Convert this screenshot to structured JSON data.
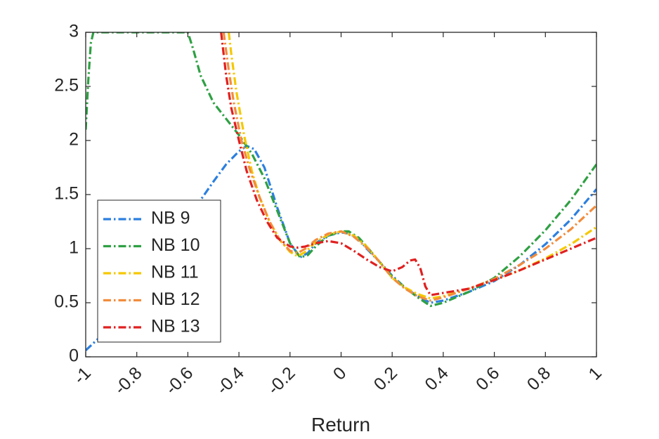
{
  "chart_data": {
    "type": "line",
    "title": "",
    "xlabel": "Return",
    "ylabel": "",
    "xlim": [
      -1,
      1
    ],
    "ylim": [
      0,
      3
    ],
    "xticks": [
      -1,
      -0.8,
      -0.6,
      -0.4,
      -0.2,
      0,
      0.2,
      0.4,
      0.6,
      0.8,
      1
    ],
    "xtick_labels": [
      "-1",
      "-0.8",
      "-0.6",
      "-0.4",
      "-0.2",
      "0",
      "0.2",
      "0.4",
      "0.6",
      "0.8",
      "1"
    ],
    "yticks": [
      0,
      0.5,
      1,
      1.5,
      2,
      2.5,
      3
    ],
    "ytick_labels": [
      "0",
      "0.5",
      "1",
      "1.5",
      "2",
      "2.5",
      "3"
    ],
    "grid": false,
    "legend_position": "bottom-left",
    "line_style": "dash-dot",
    "series": [
      {
        "name": "NB 9",
        "color": "#2c7fdf",
        "x": [
          -1.0,
          -0.9,
          -0.8,
          -0.7,
          -0.6,
          -0.5,
          -0.45,
          -0.4,
          -0.37,
          -0.34,
          -0.3,
          -0.25,
          -0.2,
          -0.16,
          -0.13,
          -0.1,
          -0.05,
          0.0,
          0.03,
          0.07,
          0.1,
          0.15,
          0.2,
          0.25,
          0.3,
          0.35,
          0.4,
          0.5,
          0.6,
          0.7,
          0.8,
          0.9,
          1.0
        ],
        "values": [
          0.06,
          0.28,
          0.58,
          0.92,
          1.28,
          1.62,
          1.78,
          1.9,
          1.95,
          1.92,
          1.75,
          1.38,
          1.05,
          0.92,
          0.96,
          1.05,
          1.12,
          1.15,
          1.14,
          1.09,
          1.0,
          0.88,
          0.75,
          0.64,
          0.56,
          0.5,
          0.52,
          0.6,
          0.7,
          0.85,
          1.04,
          1.27,
          1.55
        ]
      },
      {
        "name": "NB 10",
        "color": "#2fa043",
        "x": [
          -1.0,
          -0.99,
          -0.98,
          -0.97,
          -0.6,
          -0.58,
          -0.55,
          -0.5,
          -0.45,
          -0.4,
          -0.35,
          -0.3,
          -0.25,
          -0.2,
          -0.16,
          -0.13,
          -0.1,
          -0.05,
          0.0,
          0.03,
          0.07,
          0.1,
          0.15,
          0.2,
          0.25,
          0.3,
          0.35,
          0.4,
          0.5,
          0.6,
          0.7,
          0.8,
          0.9,
          1.0
        ],
        "values": [
          2.1,
          2.55,
          2.9,
          3.0,
          3.0,
          2.85,
          2.6,
          2.35,
          2.2,
          2.05,
          1.88,
          1.65,
          1.35,
          1.05,
          0.92,
          0.94,
          1.02,
          1.12,
          1.16,
          1.16,
          1.1,
          1.02,
          0.88,
          0.74,
          0.64,
          0.55,
          0.47,
          0.5,
          0.6,
          0.73,
          0.93,
          1.17,
          1.45,
          1.78
        ]
      },
      {
        "name": "NB 11",
        "color": "#f5c800",
        "x": [
          -0.44,
          -0.43,
          -0.41,
          -0.38,
          -0.35,
          -0.32,
          -0.28,
          -0.24,
          -0.2,
          -0.17,
          -0.14,
          -0.1,
          -0.05,
          0.0,
          0.05,
          0.1,
          0.15,
          0.2,
          0.25,
          0.3,
          0.35,
          0.4,
          0.5,
          0.6,
          0.7,
          0.8,
          0.9,
          1.0
        ],
        "values": [
          3.0,
          2.8,
          2.45,
          2.05,
          1.72,
          1.48,
          1.25,
          1.08,
          0.97,
          0.93,
          0.97,
          1.06,
          1.13,
          1.16,
          1.12,
          1.02,
          0.88,
          0.73,
          0.64,
          0.58,
          0.54,
          0.56,
          0.63,
          0.71,
          0.8,
          0.91,
          1.04,
          1.2
        ]
      },
      {
        "name": "NB 12",
        "color": "#f28c3c",
        "x": [
          -0.46,
          -0.44,
          -0.42,
          -0.39,
          -0.36,
          -0.32,
          -0.28,
          -0.24,
          -0.2,
          -0.17,
          -0.14,
          -0.1,
          -0.05,
          0.0,
          0.05,
          0.1,
          0.15,
          0.2,
          0.25,
          0.3,
          0.35,
          0.4,
          0.5,
          0.6,
          0.7,
          0.8,
          0.9,
          1.0
        ],
        "values": [
          3.0,
          2.65,
          2.35,
          2.0,
          1.75,
          1.48,
          1.25,
          1.08,
          0.98,
          0.96,
          1.0,
          1.08,
          1.14,
          1.16,
          1.11,
          1.01,
          0.88,
          0.73,
          0.63,
          0.56,
          0.52,
          0.55,
          0.63,
          0.72,
          0.85,
          1.0,
          1.18,
          1.4
        ]
      },
      {
        "name": "NB 13",
        "color": "#e02020",
        "x": [
          -0.47,
          -0.45,
          -0.43,
          -0.4,
          -0.37,
          -0.33,
          -0.29,
          -0.25,
          -0.2,
          -0.17,
          -0.14,
          -0.1,
          -0.05,
          0.0,
          0.05,
          0.1,
          0.15,
          0.2,
          0.24,
          0.27,
          0.29,
          0.31,
          0.33,
          0.35,
          0.4,
          0.5,
          0.6,
          0.7,
          0.8,
          0.9,
          1.0
        ],
        "values": [
          3.0,
          2.6,
          2.3,
          2.0,
          1.72,
          1.45,
          1.25,
          1.1,
          1.02,
          1.01,
          1.02,
          1.05,
          1.07,
          1.05,
          0.98,
          0.9,
          0.83,
          0.79,
          0.83,
          0.89,
          0.9,
          0.82,
          0.65,
          0.57,
          0.59,
          0.63,
          0.71,
          0.8,
          0.9,
          1.0,
          1.1
        ]
      }
    ]
  }
}
